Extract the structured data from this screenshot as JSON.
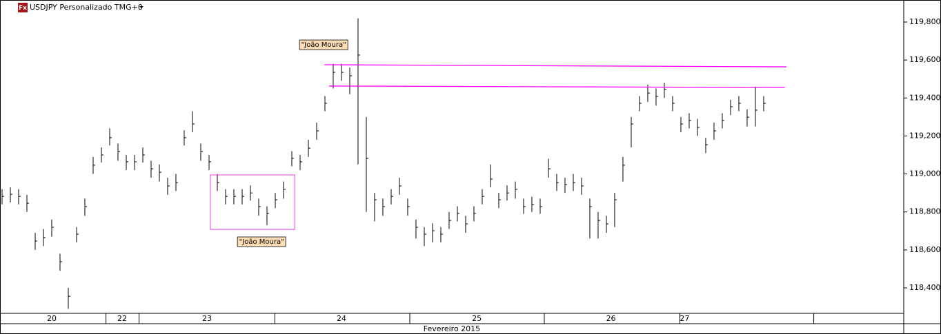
{
  "header": {
    "icon": "Fx",
    "title": "USDJPY Personalizado TMG+0"
  },
  "chart_data": {
    "type": "ohlc",
    "color": "#000000",
    "close": [
      118.882,
      118.893,
      118.882,
      118.846,
      118.647,
      118.665,
      118.719,
      118.538,
      118.356,
      118.683,
      118.828,
      119.046,
      119.1,
      119.191,
      119.118,
      119.064,
      119.064,
      119.1,
      119.027,
      119.009,
      118.937,
      118.955,
      119.191,
      119.263,
      119.118,
      119.064,
      118.955,
      118.882,
      118.882,
      118.882,
      118.9,
      118.828,
      118.792,
      118.864,
      118.919,
      119.082,
      119.064,
      119.136,
      119.227,
      119.372,
      119.535,
      119.535,
      119.517,
      119.626,
      119.082,
      118.864,
      118.828,
      118.882,
      118.937,
      118.828,
      118.719,
      118.683,
      118.701,
      118.683,
      118.755,
      118.792,
      118.737,
      118.792,
      118.882,
      118.973,
      118.864,
      118.9,
      118.919,
      118.828,
      118.839,
      118.828,
      119.027,
      118.955,
      118.944,
      118.955,
      118.937,
      118.828,
      118.755,
      118.737,
      118.864,
      119.046,
      119.263,
      119.372,
      119.426,
      119.408,
      119.445,
      119.372,
      119.263,
      119.281,
      119.245,
      119.154,
      119.227,
      119.281,
      119.354,
      119.372,
      119.299,
      119.336,
      119.372
    ],
    "high": [
      118.92,
      118.93,
      118.92,
      118.89,
      118.69,
      118.71,
      118.76,
      118.58,
      118.4,
      118.72,
      118.87,
      119.09,
      119.14,
      119.24,
      119.16,
      119.1,
      119.1,
      119.14,
      119.07,
      119.05,
      118.98,
      119.0,
      119.23,
      119.33,
      119.16,
      119.1,
      119.0,
      118.92,
      118.92,
      118.92,
      118.94,
      118.87,
      118.83,
      118.9,
      118.96,
      119.12,
      119.1,
      119.18,
      119.27,
      119.41,
      119.58,
      119.58,
      119.56,
      119.82,
      119.3,
      118.9,
      118.87,
      118.92,
      118.98,
      118.87,
      118.76,
      118.72,
      118.74,
      118.72,
      118.8,
      118.83,
      118.78,
      118.83,
      118.92,
      119.05,
      118.9,
      118.94,
      118.96,
      118.87,
      118.88,
      118.87,
      119.08,
      119.0,
      118.98,
      119.0,
      118.98,
      118.87,
      118.8,
      118.78,
      118.9,
      119.09,
      119.3,
      119.41,
      119.47,
      119.45,
      119.48,
      119.41,
      119.3,
      119.32,
      119.29,
      119.19,
      119.27,
      119.32,
      119.39,
      119.41,
      119.34,
      119.46,
      119.41
    ],
    "low": [
      118.84,
      118.85,
      118.84,
      118.8,
      118.6,
      118.62,
      118.67,
      118.49,
      118.29,
      118.64,
      118.78,
      119.0,
      119.06,
      119.15,
      119.07,
      119.02,
      119.02,
      119.06,
      118.98,
      118.96,
      118.89,
      118.91,
      119.15,
      119.22,
      119.07,
      119.02,
      118.91,
      118.84,
      118.84,
      118.84,
      118.86,
      118.78,
      118.73,
      118.82,
      118.87,
      119.04,
      119.02,
      119.09,
      119.18,
      119.33,
      119.45,
      119.49,
      119.42,
      119.05,
      118.8,
      118.75,
      118.78,
      118.84,
      118.89,
      118.78,
      118.66,
      118.62,
      118.64,
      118.64,
      118.71,
      118.75,
      118.69,
      118.75,
      118.84,
      118.93,
      118.82,
      118.86,
      118.87,
      118.79,
      118.8,
      118.79,
      118.98,
      118.91,
      118.9,
      118.91,
      118.89,
      118.66,
      118.66,
      118.69,
      118.72,
      118.96,
      119.14,
      119.33,
      119.38,
      119.36,
      119.4,
      119.33,
      119.22,
      119.24,
      119.2,
      119.11,
      119.18,
      119.24,
      119.31,
      119.33,
      119.25,
      119.25,
      119.33
    ],
    "xlim": [
      0,
      109.17
    ],
    "ylim": [
      118.266,
      119.916
    ],
    "yticks": [
      {
        "value": 118.4,
        "label": "118,400"
      },
      {
        "value": 118.6,
        "label": "118,600"
      },
      {
        "value": 118.8,
        "label": "118,800"
      },
      {
        "value": 119.0,
        "label": "119,000"
      },
      {
        "value": 119.2,
        "label": "119,200"
      },
      {
        "value": 119.4,
        "label": "119,400"
      },
      {
        "value": 119.6,
        "label": "119,600"
      },
      {
        "value": 119.8,
        "label": "119,800"
      }
    ],
    "xticks": [
      {
        "value": 6.25,
        "label": "20"
      },
      {
        "value": 14.75,
        "label": "22"
      },
      {
        "value": 25,
        "label": "23"
      },
      {
        "value": 41.25,
        "label": "24"
      },
      {
        "value": 57.6,
        "label": "25"
      },
      {
        "value": 73.8,
        "label": "26"
      },
      {
        "value": 82.7,
        "label": "27"
      }
    ],
    "separators": [
      12.8,
      16.8,
      33.2,
      49.5,
      65.75,
      82.1,
      98.3
    ],
    "xlabel": "Fevereiro 2015",
    "lines": [
      {
        "color": "#ff00ff",
        "x": [
          39.2,
          95
        ],
        "y": [
          119.575,
          119.564
        ]
      },
      {
        "color": "#ff00ff",
        "x": [
          39.75,
          94.8
        ],
        "y": [
          119.463,
          119.455
        ]
      }
    ],
    "box": {
      "color": "#e040e0",
      "x": [
        25.4,
        35.6
      ],
      "y": [
        118.708,
        118.995
      ]
    },
    "annotations": [
      {
        "text": "\"João Moura\"",
        "x": 39.1,
        "y": 119.68
      },
      {
        "text": "\"João Moura\"",
        "x": 31.6,
        "y": 118.643
      }
    ]
  }
}
